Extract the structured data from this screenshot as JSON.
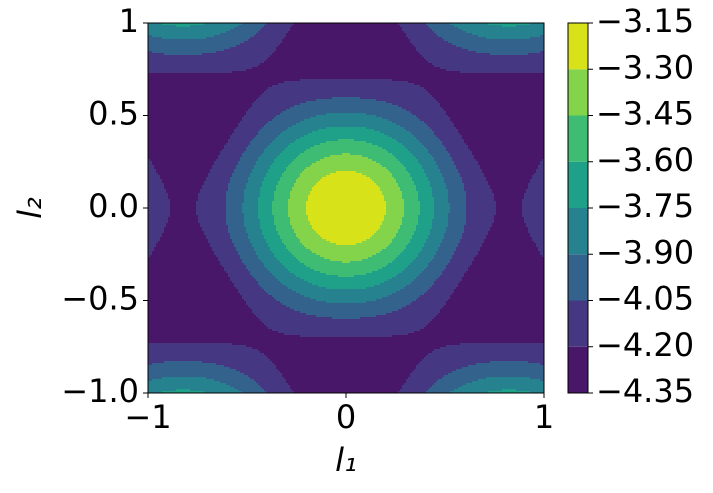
{
  "chart_data": {
    "type": "contour",
    "xlabel": "l₁",
    "ylabel": "l₂",
    "xlim": [
      -1,
      1
    ],
    "ylim": [
      -1,
      1
    ],
    "xticks": [
      {
        "value": -1,
        "label": "−1"
      },
      0,
      1
    ],
    "yticks": [
      {
        "value": -1,
        "label": "−1.0"
      },
      {
        "value": -0.5,
        "label": "−0.5"
      },
      {
        "value": 0,
        "label": "0.0"
      },
      0.5,
      1
    ],
    "levels": [
      {
        "value": -4.35,
        "label": "−4.35"
      },
      {
        "value": -4.2,
        "label": "−4.20"
      },
      {
        "value": -4.05,
        "label": "−4.05"
      },
      {
        "value": -3.9,
        "label": "−3.90"
      },
      {
        "value": -3.75,
        "label": "−3.75"
      },
      {
        "value": -3.6,
        "label": "−3.60"
      },
      {
        "value": -3.45,
        "label": "−3.45"
      },
      {
        "value": -3.3,
        "label": "−3.30"
      },
      {
        "value": -3.15,
        "label": "−3.15"
      }
    ],
    "colors": [
      "#481769",
      "#453781",
      "#33638d",
      "#26828e",
      "#1fa088",
      "#3fbc73",
      "#84d44b",
      "#d8e219"
    ]
  }
}
